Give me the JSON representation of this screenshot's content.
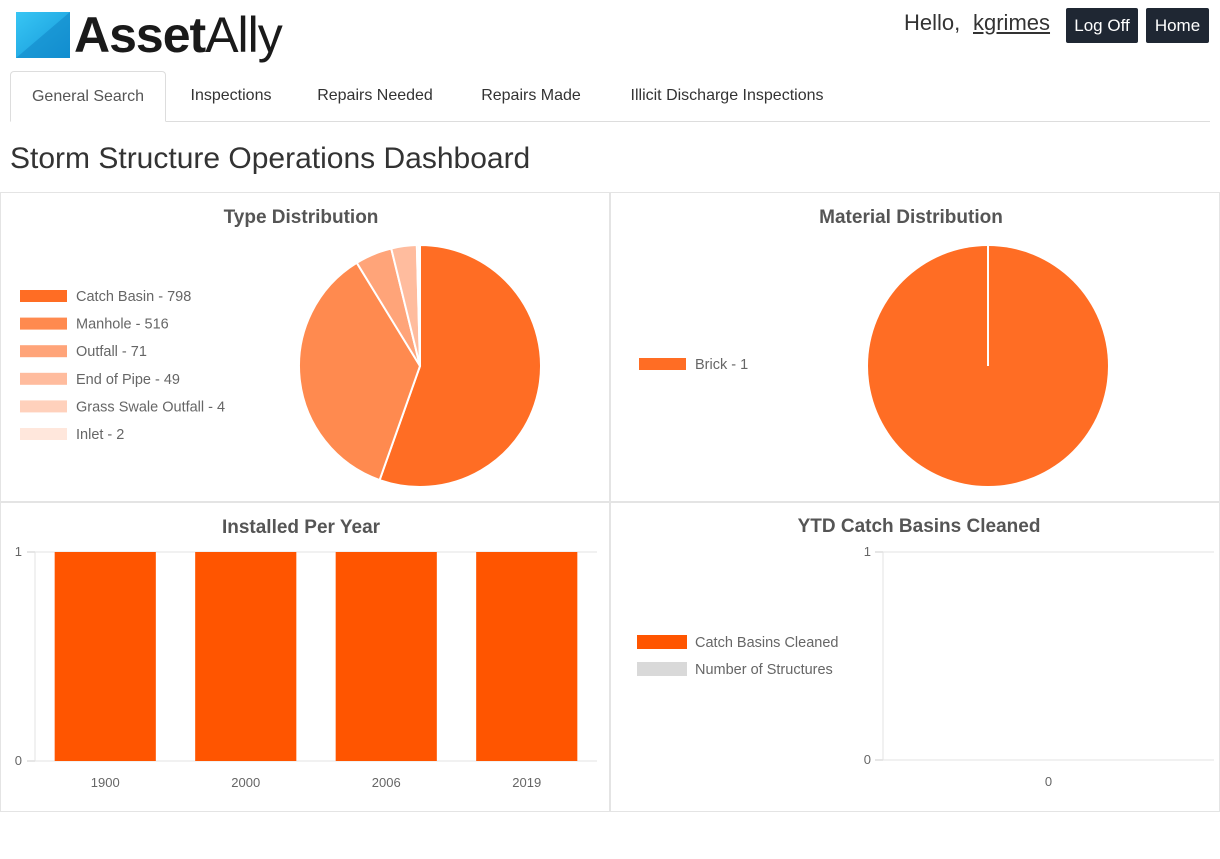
{
  "header": {
    "logo_text_bold": "Asset",
    "logo_text_light": "Ally",
    "greeting": "Hello,",
    "username": "kgrimes",
    "logoff_label": "Log Off",
    "home_label": "Home"
  },
  "tabs": [
    {
      "label": "General Search",
      "active": true
    },
    {
      "label": "Inspections",
      "active": false
    },
    {
      "label": "Repairs Needed",
      "active": false
    },
    {
      "label": "Repairs Made",
      "active": false
    },
    {
      "label": "Illicit Discharge Inspections",
      "active": false
    }
  ],
  "page_title": "Storm Structure Operations Dashboard",
  "colors": {
    "accent": "#ff5500",
    "logo_blue": "#1fb7ee",
    "header_button": "#1f2733"
  },
  "chart_data": [
    {
      "type": "pie",
      "title": "Type Distribution",
      "legend_position": "left",
      "slices": [
        {
          "label": "Catch Basin - 798",
          "value": 798,
          "color": "#ff6d24"
        },
        {
          "label": "Manhole - 516",
          "value": 516,
          "color": "#ff8a4f"
        },
        {
          "label": "Outfall - 71",
          "value": 71,
          "color": "#ffa479"
        },
        {
          "label": "End of Pipe - 49",
          "value": 49,
          "color": "#ffbc9e"
        },
        {
          "label": "Grass Swale Outfall - 4",
          "value": 4,
          "color": "#ffd1bc"
        },
        {
          "label": "Inlet - 2",
          "value": 2,
          "color": "#ffe7dc"
        }
      ]
    },
    {
      "type": "pie",
      "title": "Material Distribution",
      "legend_position": "left",
      "slices": [
        {
          "label": "Brick - 1",
          "value": 1,
          "color": "#ff6d24"
        }
      ]
    },
    {
      "type": "bar",
      "title": "Installed Per Year",
      "categories": [
        "1900",
        "2000",
        "2006",
        "2019"
      ],
      "values": [
        1,
        1,
        1,
        1
      ],
      "ylim": [
        0,
        1
      ],
      "yticks": [
        "0",
        "1"
      ],
      "color": "#ff5500",
      "grid": true
    },
    {
      "type": "bar",
      "title": "YTD Catch Basins Cleaned",
      "legend_position": "left",
      "categories": [
        "0"
      ],
      "series": [
        {
          "name": "Catch Basins Cleaned",
          "values": [
            0
          ],
          "color": "#ff5500"
        },
        {
          "name": "Number of Structures",
          "values": [
            0
          ],
          "color": "#d9d9d9"
        }
      ],
      "ylim": [
        0,
        1
      ],
      "yticks": [
        "0",
        "1"
      ],
      "grid": true
    }
  ]
}
